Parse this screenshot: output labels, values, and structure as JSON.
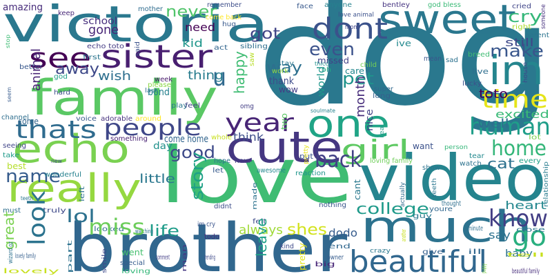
{
  "words": [
    {
      "text": "dog",
      "color": "#2a788e"
    },
    {
      "text": "love",
      "color": "#3fbc73"
    },
    {
      "text": "video",
      "color": "#25848e"
    },
    {
      "text": "brother",
      "color": "#31678e"
    },
    {
      "text": "victoria",
      "color": "#2a788e"
    },
    {
      "text": "family",
      "color": "#5ac864"
    },
    {
      "text": "much",
      "color": "#2c728e"
    },
    {
      "text": "sweet",
      "color": "#2a778e"
    },
    {
      "text": "cute",
      "color": "#453781"
    },
    {
      "text": "echo",
      "color": "#7ad151"
    },
    {
      "text": "really",
      "color": "#95d840"
    },
    {
      "text": "beautiful",
      "color": "#31678e"
    },
    {
      "text": "im",
      "color": "#25858e"
    },
    {
      "text": "one",
      "color": "#20a486"
    },
    {
      "text": "sister",
      "color": "#481f70"
    },
    {
      "text": "see",
      "color": "#440154"
    },
    {
      "text": "dont",
      "color": "#3b528b"
    },
    {
      "text": "look",
      "color": "#2c738e"
    },
    {
      "text": "miss",
      "color": "#6ccd5a"
    },
    {
      "text": "people",
      "color": "#3f4788"
    },
    {
      "text": "year",
      "color": "#482576"
    },
    {
      "text": "human",
      "color": "#1f9e89"
    },
    {
      "text": "girl",
      "color": "#5ec962"
    },
    {
      "text": "thats",
      "color": "#2f6b8e"
    },
    {
      "text": "go",
      "color": "#29af7f"
    },
    {
      "text": "time",
      "color": "#e5e419"
    },
    {
      "text": "know",
      "color": "#433e85"
    },
    {
      "text": "home",
      "color": "#34b679"
    },
    {
      "text": "college",
      "color": "#1f9a8a"
    },
    {
      "text": "back",
      "color": "#424186"
    },
    {
      "text": "name",
      "color": "#365c8d"
    },
    {
      "text": "u",
      "color": "#30698e"
    },
    {
      "text": "got",
      "color": "#414487"
    },
    {
      "text": "story",
      "color": "#1fa187"
    },
    {
      "text": "good",
      "color": "#3e4a89"
    },
    {
      "text": "never",
      "color": "#50c46a"
    },
    {
      "text": "lol",
      "color": "#2c718e"
    },
    {
      "text": "make",
      "color": "#39568c"
    },
    {
      "text": "even",
      "color": "#3b528b"
    },
    {
      "text": "way",
      "color": "#2d708e"
    },
    {
      "text": "life",
      "color": "#1e9c89"
    },
    {
      "text": "shes",
      "color": "#d2e21b"
    },
    {
      "text": "pet",
      "color": "#1f948c"
    },
    {
      "text": "happy",
      "color": "#3fbc73"
    },
    {
      "text": "away",
      "color": "#3e4989"
    },
    {
      "text": "toto",
      "color": "#440154"
    },
    {
      "text": "animal",
      "color": "#482475"
    },
    {
      "text": "month",
      "color": "#472d7b"
    },
    {
      "text": "cat",
      "color": "#2d718e"
    },
    {
      "text": "well",
      "color": "#2d708e"
    },
    {
      "text": "excited",
      "color": "#3aba76"
    },
    {
      "text": "heart",
      "color": "#24878e"
    },
    {
      "text": "leave",
      "color": "#1fa088"
    },
    {
      "text": "great",
      "color": "#7ad151"
    },
    {
      "text": "say",
      "color": "#2c718e"
    },
    {
      "text": "little",
      "color": "#2a778e"
    },
    {
      "text": "wish",
      "color": "#2e6f8e"
    },
    {
      "text": "still",
      "color": "#3e4989"
    },
    {
      "text": "gone",
      "color": "#482677"
    },
    {
      "text": "thing",
      "color": "#287c8e"
    },
    {
      "text": "always",
      "color": "#a0da39"
    },
    {
      "text": "dodo",
      "color": "#365c8d"
    },
    {
      "text": "need",
      "color": "#440154"
    },
    {
      "text": "kid",
      "color": "#1f968b"
    },
    {
      "text": "think",
      "color": "#3d4e8a"
    },
    {
      "text": "cry",
      "color": "#35b779"
    },
    {
      "text": "thank",
      "color": "#3e4c8a"
    },
    {
      "text": "come home",
      "color": "#32658e"
    },
    {
      "text": "baby",
      "color": "#2c738e"
    },
    {
      "text": "nice",
      "color": "#424186"
    },
    {
      "text": "day",
      "color": "#21918c"
    },
    {
      "text": "world",
      "color": "#1f968b"
    },
    {
      "text": "amazing",
      "color": "#472c7a"
    },
    {
      "text": "school",
      "color": "#472f7d"
    },
    {
      "text": "bond",
      "color": "#26818e"
    },
    {
      "text": "care",
      "color": "#23888e"
    },
    {
      "text": "wow",
      "color": "#433e85"
    },
    {
      "text": "went",
      "color": "#46c06f"
    },
    {
      "text": "come",
      "color": "#32658e"
    },
    {
      "text": "best",
      "color": "#b5de2b"
    },
    {
      "text": "want",
      "color": "#3b518b"
    },
    {
      "text": "ive",
      "color": "#23898e"
    },
    {
      "text": "two",
      "color": "#5ac864"
    },
    {
      "text": "cant",
      "color": "#2a788e"
    },
    {
      "text": "hour",
      "color": "#433d84"
    },
    {
      "text": "put",
      "color": "#3b528b"
    },
    {
      "text": "missed",
      "color": "#414287"
    },
    {
      "text": "live",
      "color": "#2e6e8e"
    },
    {
      "text": "play",
      "color": "#2a788e"
    },
    {
      "text": "feel",
      "color": "#414487"
    },
    {
      "text": "sibling",
      "color": "#2e6f8e"
    },
    {
      "text": "act",
      "color": "#32658e"
    },
    {
      "text": "hug",
      "color": "#38598c"
    },
    {
      "text": "first",
      "color": "#2b758e"
    },
    {
      "text": "said",
      "color": "#3b528b"
    },
    {
      "text": "keep",
      "color": "#482878"
    },
    {
      "text": "mother",
      "color": "#2f6c8e"
    },
    {
      "text": "remember",
      "color": "#3d4e8a"
    },
    {
      "text": "come back",
      "color": "#fde725"
    },
    {
      "text": "face",
      "color": "#38598c"
    },
    {
      "text": "anyone",
      "color": "#26828e"
    },
    {
      "text": "bentley",
      "color": "#463480"
    },
    {
      "text": "god bless",
      "color": "#3aba76"
    },
    {
      "text": "cried",
      "color": "#404588"
    },
    {
      "text": "someone",
      "color": "#46307e"
    },
    {
      "text": "right",
      "color": "#addc30"
    },
    {
      "text": "parent",
      "color": "#2b748e"
    },
    {
      "text": "echo toto",
      "color": "#443b84"
    },
    {
      "text": "stop",
      "color": "#3dbc74"
    },
    {
      "text": "love animal",
      "color": "#3b518b"
    },
    {
      "text": "mom",
      "color": "#404688"
    },
    {
      "text": "mean",
      "color": "#39568c"
    },
    {
      "text": "sad",
      "color": "#2c718e"
    },
    {
      "text": "breed",
      "color": "#3fbc73"
    },
    {
      "text": "house",
      "color": "#3e4a89"
    },
    {
      "text": "better",
      "color": "#38588c"
    },
    {
      "text": "god",
      "color": "#1f9e89"
    },
    {
      "text": "hard",
      "color": "#3d4e8a"
    },
    {
      "text": "seem",
      "color": "#375b8d"
    },
    {
      "text": "week",
      "color": "#481a6c"
    },
    {
      "text": "please",
      "color": "#8bd646"
    },
    {
      "text": "last",
      "color": "#2d708e"
    },
    {
      "text": "saw",
      "color": "#b8de29"
    },
    {
      "text": "stay",
      "color": "#2b758e"
    },
    {
      "text": "work",
      "color": "#93d741"
    },
    {
      "text": "child",
      "color": "#75d054"
    },
    {
      "text": "oh",
      "color": "#22a884"
    },
    {
      "text": "lucky",
      "color": "#3b528b"
    },
    {
      "text": "super",
      "color": "#31688e"
    },
    {
      "text": "long",
      "color": "#355f8d"
    },
    {
      "text": "thicc",
      "color": "#21918c"
    },
    {
      "text": "soulmate",
      "color": "#25838e"
    },
    {
      "text": "omg",
      "color": "#433e85"
    },
    {
      "text": "channel",
      "color": "#2e6e8e"
    },
    {
      "text": "voice",
      "color": "#38598c"
    },
    {
      "text": "adorable",
      "color": "#46327e"
    },
    {
      "text": "around",
      "color": "#fde725"
    },
    {
      "text": "whole",
      "color": "#c8e020"
    },
    {
      "text": "something",
      "color": "#482173"
    },
    {
      "text": "seeing",
      "color": "#404588"
    },
    {
      "text": "take",
      "color": "#1f9a8a"
    },
    {
      "text": "new",
      "color": "#3e4a89"
    },
    {
      "text": "wonderful",
      "color": "#26818e"
    },
    {
      "text": "left",
      "color": "#2c728e"
    },
    {
      "text": "hope",
      "color": "#2d708e"
    },
    {
      "text": "let",
      "color": "#375a8c"
    },
    {
      "text": "awesome",
      "color": "#24878e"
    },
    {
      "text": "reaction",
      "color": "#1f958b"
    },
    {
      "text": "real",
      "color": "#1f9a8a"
    },
    {
      "text": "pretty",
      "color": "#e5e419"
    },
    {
      "text": "loving family",
      "color": "#6ece58"
    },
    {
      "text": "person",
      "color": "#35b779"
    },
    {
      "text": "tear",
      "color": "#23898e"
    },
    {
      "text": "watch",
      "color": "#2c728e"
    },
    {
      "text": "show",
      "color": "#2c728e"
    },
    {
      "text": "every",
      "color": "#1fa187"
    },
    {
      "text": "lot",
      "color": "#7ad151"
    },
    {
      "text": "relationship",
      "color": "#287c8e"
    },
    {
      "text": "teeth",
      "color": "#2a768e"
    },
    {
      "text": "must",
      "color": "#2e6e8e"
    },
    {
      "text": "truly",
      "color": "#3e4989"
    },
    {
      "text": "looked",
      "color": "#2f6c8e"
    },
    {
      "text": "watching",
      "color": "#2d708e"
    },
    {
      "text": "didnt",
      "color": "#3d4e8a"
    },
    {
      "text": "made",
      "color": "#2c728e"
    },
    {
      "text": "actually",
      "color": "#2f6b8e"
    },
    {
      "text": "nothing",
      "color": "#39568c"
    },
    {
      "text": "thought",
      "color": "#2e6f8e"
    },
    {
      "text": "youre",
      "color": "#31678e"
    },
    {
      "text": "minute",
      "color": "#2e6e8e"
    },
    {
      "text": "part",
      "color": "#2c718e"
    },
    {
      "text": "wizard oz",
      "color": "#2c718e"
    },
    {
      "text": "im cry",
      "color": "#3a548c"
    },
    {
      "text": "todo",
      "color": "#482878"
    },
    {
      "text": "kind",
      "color": "#3e4a89"
    },
    {
      "text": "felt",
      "color": "#3e4a89"
    },
    {
      "text": "guy",
      "color": "#2a778e"
    },
    {
      "text": "close",
      "color": "#2b758e"
    },
    {
      "text": "another",
      "color": "#c8e020"
    },
    {
      "text": "end",
      "color": "#31678e"
    },
    {
      "text": "owner",
      "color": "#365c8d"
    },
    {
      "text": "give",
      "color": "#35608d"
    },
    {
      "text": "crazy",
      "color": "#2a788e"
    },
    {
      "text": "puppy",
      "color": "#84d44b"
    },
    {
      "text": "ill",
      "color": "#31678e"
    },
    {
      "text": "tell",
      "color": "#c8e020"
    },
    {
      "text": "lovely family",
      "color": "#355f8d"
    },
    {
      "text": "smile",
      "color": "#3e4989"
    },
    {
      "text": "special",
      "color": "#365c8d"
    },
    {
      "text": "loving",
      "color": "#35b779"
    },
    {
      "text": "comment",
      "color": "#433e85"
    },
    {
      "text": "man",
      "color": "#453781"
    },
    {
      "text": "trending",
      "color": "#3e4a89"
    },
    {
      "text": "big",
      "color": "#482677"
    },
    {
      "text": "lovely",
      "color": "#c8e020"
    },
    {
      "text": "beautiful family",
      "color": "#472d7b"
    },
    {
      "text": "reunion",
      "color": "#3dbc74"
    }
  ]
}
